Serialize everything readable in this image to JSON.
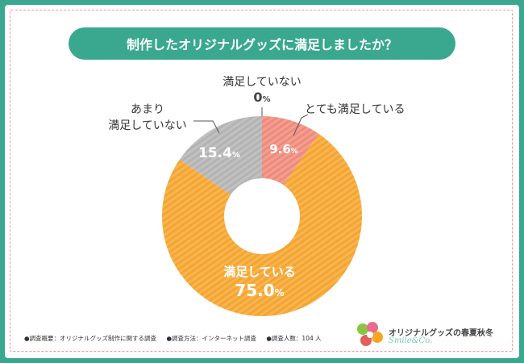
{
  "title": "制作したオリジナルグッズに満足しましたか？",
  "chart_data": {
    "type": "pie",
    "donut": true,
    "title": "制作したオリジナルグッズに満足しましたか？",
    "slices": [
      {
        "name": "とても満足している",
        "value": 9.6,
        "color": "#ef8a7a",
        "display": "9.6"
      },
      {
        "name": "満足している",
        "value": 75.0,
        "color": "#f5a52e",
        "display": "75.0"
      },
      {
        "name": "あまり満足していない",
        "value": 15.4,
        "color": "#b3b3b3",
        "display": "15.4"
      },
      {
        "name": "満足していない",
        "value": 0,
        "color": "#cccccc",
        "display": "0"
      }
    ],
    "unit": "%"
  },
  "labels": {
    "very_satisfied": "とても満足している",
    "satisfied": "満足している",
    "not_very_line1": "あまり",
    "not_very_line2": "満足していない",
    "not_satisfied": "満足していない",
    "zero_value": "0"
  },
  "footer": {
    "survey_summary": "●調査概要：オリジナルグッズ制作に関する調査",
    "survey_method": "●調査方法：インターネット調査",
    "respondents": "●調査人数：104 人"
  },
  "logo": {
    "text": "オリジナルグッズの春夏秋冬",
    "sub": "Smile&Co."
  }
}
